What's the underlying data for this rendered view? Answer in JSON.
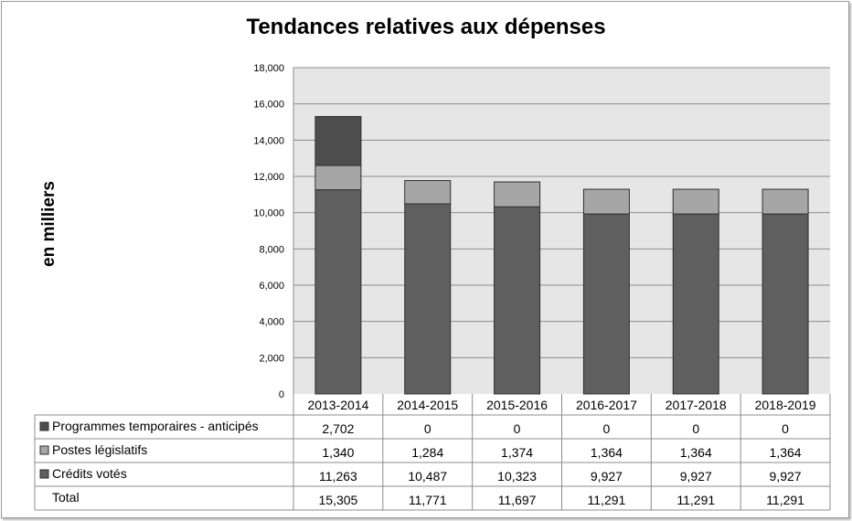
{
  "chart_data": {
    "type": "bar",
    "stacked": true,
    "title": "Tendances relatives aux dépenses",
    "ylabel": "en milliers",
    "xlabel": "",
    "ylim": [
      0,
      18000
    ],
    "yticks": [
      "0",
      "2,000",
      "4,000",
      "6,000",
      "8,000",
      "10,000",
      "12,000",
      "14,000",
      "16,000",
      "18,000"
    ],
    "grid": true,
    "legend": "table-below",
    "categories": [
      "2013-2014",
      "2014-2015",
      "2015-2016",
      "2016-2017",
      "2017-2018",
      "2018-2019"
    ],
    "series": [
      {
        "name": "Programmes temporaires - anticipés",
        "color": "#4d4d4d",
        "values": [
          2702,
          0,
          0,
          0,
          0,
          0
        ],
        "labels": [
          "2,702",
          "0",
          "0",
          "0",
          "0",
          "0"
        ]
      },
      {
        "name": "Postes législatifs",
        "color": "#a6a6a6",
        "values": [
          1340,
          1284,
          1374,
          1364,
          1364,
          1364
        ],
        "labels": [
          "1,340",
          "1,284",
          "1,374",
          "1,364",
          "1,364",
          "1,364"
        ]
      },
      {
        "name": "Crédits votés",
        "color": "#5f5f5f",
        "values": [
          11263,
          10487,
          10323,
          9927,
          9927,
          9927
        ],
        "labels": [
          "11,263",
          "10,487",
          "10,323",
          "9,927",
          "9,927",
          "9,927"
        ]
      }
    ],
    "total": {
      "name": "Total",
      "labels": [
        "15,305",
        "11,771",
        "11,697",
        "11,291",
        "11,291",
        "11,291"
      ]
    }
  }
}
